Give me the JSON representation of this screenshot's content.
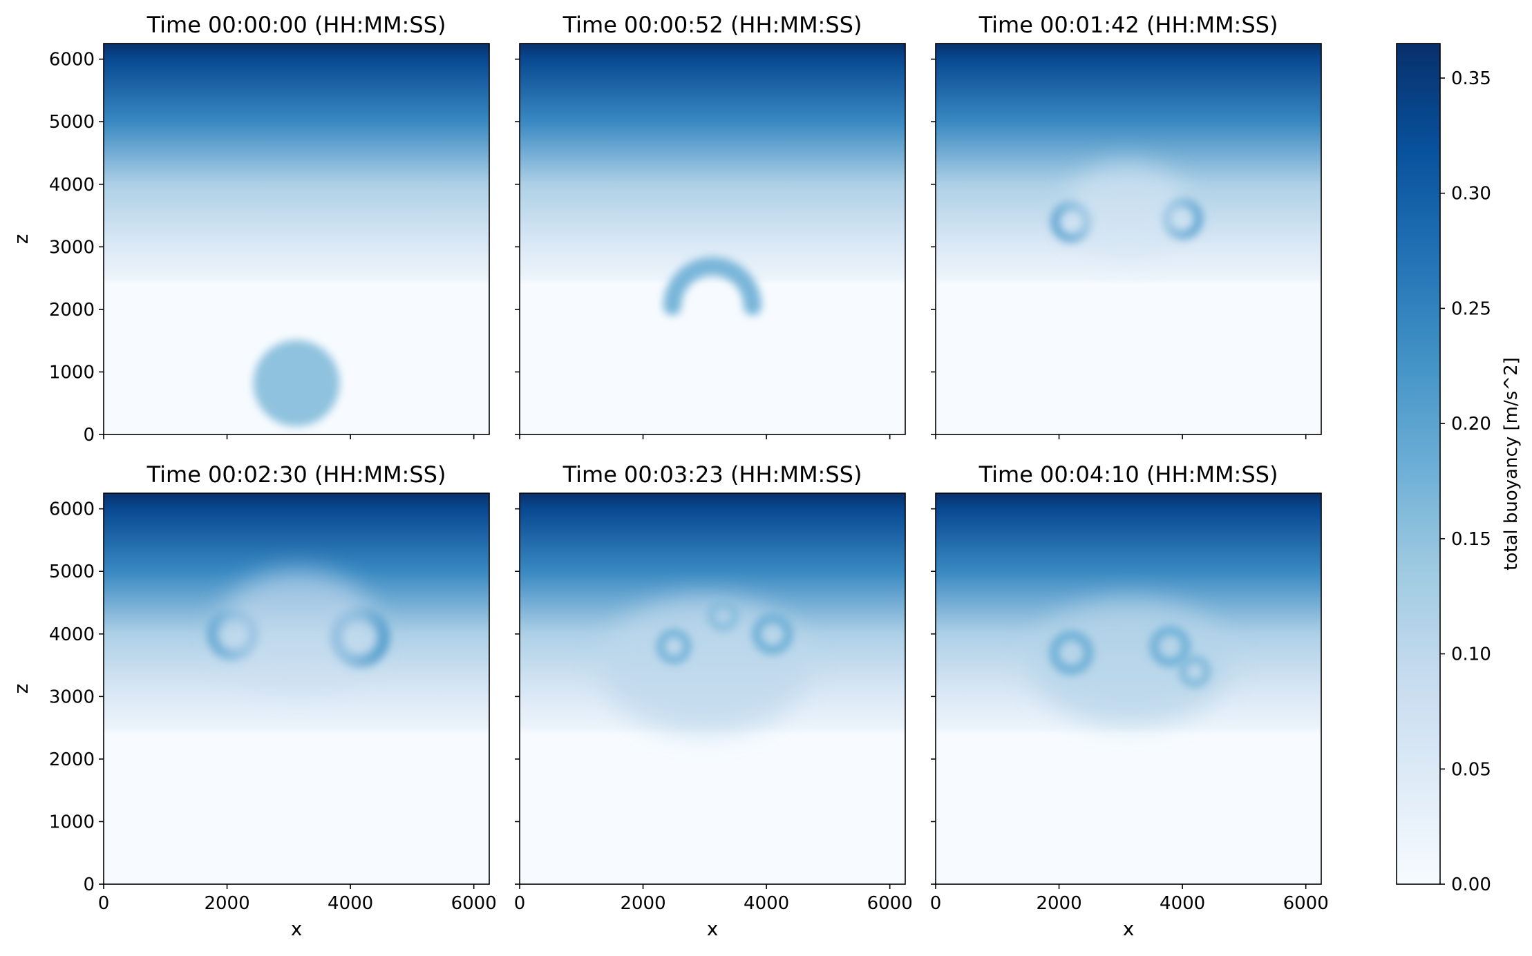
{
  "figure": {
    "colormap": "Blues",
    "colormap_stops": [
      "#f7fbff",
      "#deebf7",
      "#c6dbef",
      "#9ecae1",
      "#6baed6",
      "#4292c6",
      "#2171b5",
      "#08519c",
      "#08306b"
    ],
    "frame_color": "#000000"
  },
  "chart_data": [
    {
      "type": "heatmap",
      "title": "Time 00:00:00 (HH:MM:SS)",
      "xlabel": "",
      "ylabel": "z",
      "xlim": [
        0,
        6250
      ],
      "ylim": [
        0,
        6250
      ],
      "x_ticks": [],
      "y_ticks": [
        0,
        1000,
        2000,
        3000,
        4000,
        5000,
        6000
      ],
      "features": [
        {
          "kind": "bubble",
          "x": 3125,
          "y": 820,
          "r": 700,
          "value": 0.15
        }
      ]
    },
    {
      "type": "heatmap",
      "title": "Time 00:00:52 (HH:MM:SS)",
      "xlabel": "",
      "ylabel": "",
      "xlim": [
        0,
        6250
      ],
      "ylim": [
        0,
        6250
      ],
      "x_ticks": [],
      "y_ticks": [],
      "features": [
        {
          "kind": "cap",
          "x": 3125,
          "y": 2050,
          "r": 650,
          "value": 0.17
        },
        {
          "kind": "stem",
          "x": 3125,
          "y0": 0,
          "y1": 2100,
          "value": 0.04
        }
      ]
    },
    {
      "type": "heatmap",
      "title": "Time 00:01:42 (HH:MM:SS)",
      "xlabel": "",
      "ylabel": "",
      "xlim": [
        0,
        6250
      ],
      "ylim": [
        0,
        6250
      ],
      "x_ticks": [],
      "y_ticks": [],
      "features": [
        {
          "kind": "vortex",
          "x": 2200,
          "y": 3400,
          "r": 260,
          "value": 0.2
        },
        {
          "kind": "vortex",
          "x": 4000,
          "y": 3450,
          "r": 260,
          "value": 0.2
        },
        {
          "kind": "dome",
          "x": 3100,
          "y": 3600,
          "r": 1000,
          "value": 0.06
        },
        {
          "kind": "stem",
          "x": 3125,
          "y0": 0,
          "y1": 3000,
          "value": 0.03
        }
      ]
    },
    {
      "type": "heatmap",
      "title": "Time 00:02:30 (HH:MM:SS)",
      "xlabel": "x",
      "ylabel": "z",
      "xlim": [
        0,
        6250
      ],
      "ylim": [
        0,
        6250
      ],
      "x_ticks": [
        0,
        2000,
        4000,
        6000
      ],
      "y_ticks": [
        0,
        1000,
        2000,
        3000,
        4000,
        5000,
        6000
      ],
      "features": [
        {
          "kind": "vortex",
          "x": 2100,
          "y": 4000,
          "r": 330,
          "value": 0.2
        },
        {
          "kind": "vortex",
          "x": 4150,
          "y": 3950,
          "r": 380,
          "value": 0.22
        },
        {
          "kind": "dome",
          "x": 3150,
          "y": 4050,
          "r": 1300,
          "value": 0.08
        },
        {
          "kind": "stem",
          "x": 3125,
          "y0": 0,
          "y1": 3500,
          "value": 0.03
        }
      ]
    },
    {
      "type": "heatmap",
      "title": "Time 00:03:23 (HH:MM:SS)",
      "xlabel": "x",
      "ylabel": "",
      "xlim": [
        0,
        6250
      ],
      "ylim": [
        0,
        6250
      ],
      "x_ticks": [
        0,
        2000,
        4000,
        6000
      ],
      "y_ticks": [],
      "features": [
        {
          "kind": "turbulent",
          "x": 3000,
          "y": 3500,
          "rx": 1700,
          "ry": 1100,
          "value": 0.1
        },
        {
          "kind": "vortex",
          "x": 2500,
          "y": 3800,
          "r": 220,
          "value": 0.18
        },
        {
          "kind": "vortex",
          "x": 4100,
          "y": 4000,
          "r": 260,
          "value": 0.18
        },
        {
          "kind": "vortex",
          "x": 3300,
          "y": 4300,
          "r": 200,
          "value": 0.16
        }
      ]
    },
    {
      "type": "heatmap",
      "title": "Time 00:04:10 (HH:MM:SS)",
      "xlabel": "x",
      "ylabel": "",
      "xlim": [
        0,
        6250
      ],
      "ylim": [
        0,
        6250
      ],
      "x_ticks": [
        0,
        2000,
        4000,
        6000
      ],
      "y_ticks": [],
      "features": [
        {
          "kind": "turbulent",
          "x": 3150,
          "y": 3550,
          "rx": 1650,
          "ry": 1000,
          "value": 0.11
        },
        {
          "kind": "vortex",
          "x": 2200,
          "y": 3700,
          "r": 280,
          "value": 0.18
        },
        {
          "kind": "vortex",
          "x": 3800,
          "y": 3800,
          "r": 260,
          "value": 0.18
        },
        {
          "kind": "vortex",
          "x": 4200,
          "y": 3400,
          "r": 200,
          "value": 0.17
        }
      ]
    }
  ],
  "colorbar": {
    "label": "total buoyancy [m/s^2]",
    "range": [
      0,
      0.365
    ],
    "ticks": [
      "0.00",
      "0.05",
      "0.10",
      "0.15",
      "0.20",
      "0.25",
      "0.30",
      "0.35"
    ],
    "tick_values": [
      0,
      0.05,
      0.1,
      0.15,
      0.2,
      0.25,
      0.3,
      0.35
    ]
  },
  "background_profile": {
    "description_values": "buoyancy vs z (data units)",
    "z": [
      0,
      2400,
      2500,
      3000,
      4000,
      5000,
      6000,
      6250
    ],
    "b": [
      0.0,
      0.0,
      0.02,
      0.05,
      0.12,
      0.24,
      0.33,
      0.365
    ]
  }
}
